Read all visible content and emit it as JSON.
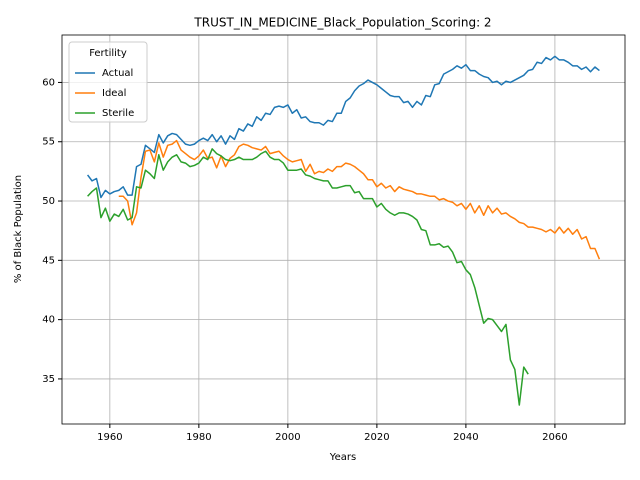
{
  "chart_data": {
    "type": "line",
    "title": "TRUST_IN_MEDICINE_Black_Population_Scoring: 2",
    "xlabel": "Years",
    "ylabel": "% of Black Population",
    "legend_title": "Fertility",
    "legend": "upper left",
    "grid": true,
    "xlim": [
      1949.25,
      2075.75
    ],
    "xticks": [
      1960,
      1980,
      2000,
      2020,
      2040,
      2060
    ],
    "ylim": [
      31.2,
      64.0
    ],
    "yticks": [
      35,
      40,
      45,
      50,
      55,
      60
    ],
    "x": [
      1955,
      1956,
      1957,
      1958,
      1959,
      1960,
      1961,
      1962,
      1963,
      1964,
      1965,
      1966,
      1967,
      1968,
      1969,
      1970,
      1971,
      1972,
      1973,
      1974,
      1975,
      1976,
      1977,
      1978,
      1979,
      1980,
      1981,
      1982,
      1983,
      1984,
      1985,
      1986,
      1987,
      1988,
      1989,
      1990,
      1991,
      1992,
      1993,
      1994,
      1995,
      1996,
      1997,
      1998,
      1999,
      2000,
      2001,
      2002,
      2003,
      2004,
      2005,
      2006,
      2007,
      2008,
      2009,
      2010,
      2011,
      2012,
      2013,
      2014,
      2015,
      2016,
      2017,
      2018,
      2019,
      2020,
      2021,
      2022,
      2023,
      2024,
      2025,
      2026,
      2027,
      2028,
      2029,
      2030,
      2031,
      2032,
      2033,
      2034,
      2035,
      2036,
      2037,
      2038,
      2039,
      2040,
      2041,
      2042,
      2043,
      2044,
      2045,
      2046,
      2047,
      2048,
      2049,
      2050,
      2051,
      2052,
      2053,
      2054,
      2055,
      2056,
      2057,
      2058,
      2059,
      2060,
      2061,
      2062,
      2063,
      2064,
      2065,
      2066,
      2067,
      2068,
      2069,
      2070
    ],
    "series": [
      {
        "name": "Actual",
        "color": "#1f77b4",
        "values": [
          52.2,
          51.7,
          51.9,
          50.3,
          50.9,
          50.6,
          50.8,
          50.9,
          51.2,
          50.5,
          50.5,
          52.9,
          53.1,
          54.7,
          54.4,
          54.1,
          55.6,
          54.9,
          55.5,
          55.7,
          55.6,
          55.2,
          54.8,
          54.7,
          54.8,
          55.1,
          55.3,
          55.1,
          55.6,
          55.0,
          55.5,
          54.8,
          55.5,
          55.2,
          56.1,
          55.9,
          56.5,
          56.3,
          57.1,
          56.8,
          57.4,
          57.3,
          57.9,
          58.0,
          57.9,
          58.1,
          57.4,
          57.7,
          57.0,
          57.1,
          56.7,
          56.6,
          56.6,
          56.4,
          56.8,
          56.7,
          57.4,
          57.4,
          58.4,
          58.7,
          59.3,
          59.7,
          59.9,
          60.2,
          60.0,
          59.8,
          59.5,
          59.2,
          58.9,
          58.8,
          58.8,
          58.3,
          58.4,
          57.9,
          58.4,
          58.1,
          58.9,
          58.8,
          59.8,
          59.9,
          60.7,
          60.9,
          61.1,
          61.4,
          61.2,
          61.5,
          61.0,
          61.0,
          60.7,
          60.5,
          60.4,
          60.0,
          60.1,
          59.8,
          60.1,
          60.0,
          60.2,
          60.4,
          60.6,
          61.0,
          61.1,
          61.7,
          61.6,
          62.1,
          61.9,
          62.2,
          61.9,
          61.9,
          61.7,
          61.4,
          61.4,
          61.1,
          61.3,
          60.9,
          61.3,
          61.0
        ]
      },
      {
        "name": "Ideal",
        "color": "#ff7f0e",
        "values": [
          null,
          null,
          null,
          null,
          null,
          null,
          null,
          50.4,
          50.4,
          50.0,
          48.0,
          49.0,
          52.0,
          54.2,
          54.3,
          53.3,
          54.9,
          53.7,
          54.7,
          54.8,
          55.1,
          54.3,
          54.0,
          53.7,
          53.5,
          53.8,
          54.3,
          53.6,
          53.7,
          52.8,
          53.8,
          52.9,
          53.6,
          53.9,
          54.6,
          54.8,
          54.7,
          54.5,
          54.4,
          54.3,
          54.6,
          54.0,
          54.1,
          54.2,
          53.8,
          53.5,
          53.3,
          53.4,
          53.5,
          52.5,
          53.1,
          52.3,
          52.5,
          52.4,
          52.7,
          52.5,
          52.9,
          52.9,
          53.2,
          53.1,
          52.9,
          52.6,
          52.3,
          51.8,
          51.8,
          51.2,
          51.5,
          51.1,
          51.3,
          50.8,
          51.2,
          51.0,
          50.9,
          50.8,
          50.6,
          50.6,
          50.5,
          50.4,
          50.4,
          50.1,
          50.2,
          50.0,
          49.9,
          49.6,
          49.8,
          49.3,
          49.8,
          49.0,
          49.6,
          48.8,
          49.6,
          49.0,
          49.4,
          48.9,
          49.0,
          48.7,
          48.5,
          48.2,
          48.1,
          47.8,
          47.8,
          47.7,
          47.6,
          47.4,
          47.6,
          47.3,
          47.8,
          47.3,
          47.7,
          47.2,
          47.6,
          46.8,
          47.0,
          46.0,
          46.0,
          45.1
        ]
      },
      {
        "name": "Sterile",
        "color": "#2ca02c",
        "values": [
          50.4,
          50.8,
          51.1,
          48.6,
          49.4,
          48.3,
          48.9,
          48.7,
          49.3,
          48.4,
          48.6,
          51.2,
          51.1,
          52.6,
          52.3,
          51.9,
          53.9,
          52.6,
          53.3,
          53.7,
          53.9,
          53.3,
          53.2,
          52.9,
          53.0,
          53.2,
          53.7,
          53.5,
          54.4,
          54.0,
          53.8,
          53.5,
          53.4,
          53.5,
          53.7,
          53.5,
          53.5,
          53.5,
          53.7,
          54.0,
          54.2,
          53.7,
          53.5,
          53.5,
          53.2,
          52.6,
          52.6,
          52.6,
          52.7,
          52.2,
          52.1,
          51.9,
          51.8,
          51.7,
          51.7,
          51.1,
          51.1,
          51.2,
          51.3,
          51.3,
          50.7,
          50.8,
          50.2,
          50.2,
          50.2,
          49.5,
          49.8,
          49.3,
          49.0,
          48.8,
          49.0,
          49.0,
          48.9,
          48.7,
          48.4,
          47.6,
          47.5,
          46.3,
          46.3,
          46.4,
          46.1,
          46.2,
          45.7,
          44.8,
          44.9,
          44.2,
          43.8,
          42.7,
          41.2,
          39.7,
          40.1,
          40.0,
          39.5,
          39.0,
          39.6,
          36.6,
          35.8,
          32.8,
          36.0,
          35.4,
          null,
          null,
          null,
          null,
          null,
          null,
          null,
          null,
          null,
          null,
          null,
          null,
          null,
          null,
          null,
          null
        ]
      }
    ]
  }
}
